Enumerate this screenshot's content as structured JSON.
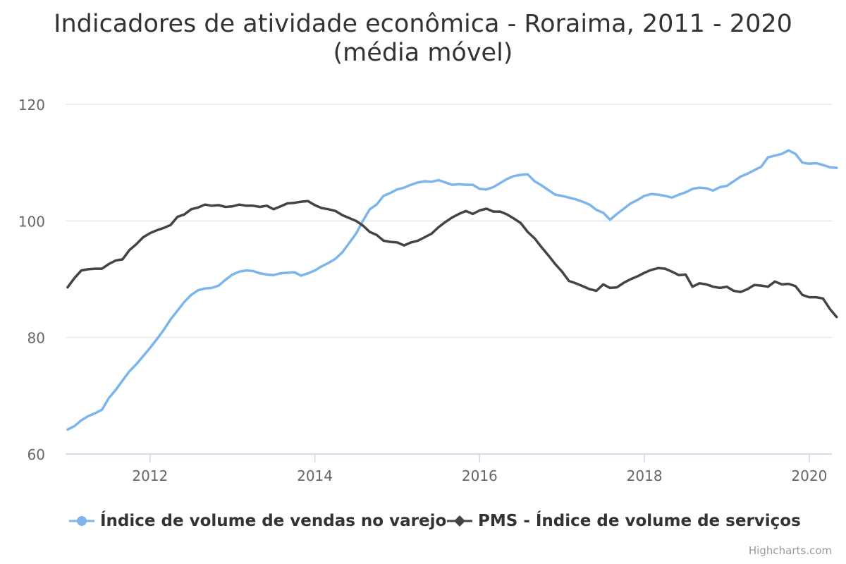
{
  "title_line1": "Indicadores de atividade econômica - Roraima, 2011 - 2020",
  "title_line2": "(média móvel)",
  "credits": "Highcharts.com",
  "chart_data": {
    "type": "line",
    "title": "Indicadores de atividade econômica - Roraima, 2011 - 2020",
    "subtitle": "(média móvel)",
    "xlabel": "",
    "ylabel": "",
    "xlim": [
      "2011-01",
      "2020-04"
    ],
    "ylim": [
      60,
      120
    ],
    "x_ticks": [
      2012,
      2014,
      2016,
      2018,
      2020
    ],
    "y_ticks": [
      60,
      80,
      100,
      120
    ],
    "grid": "horizontal",
    "legend_position": "bottom",
    "x_start": "2011-01",
    "x_step": "month",
    "series": [
      {
        "name": "Índice de volume de vendas no varejo",
        "color": "#7cb5ec",
        "marker": "circle",
        "values": [
          64.2,
          64.8,
          65.8,
          66.5,
          67.0,
          67.6,
          69.6,
          71.0,
          72.6,
          74.2,
          75.4,
          76.8,
          78.2,
          79.7,
          81.3,
          83.1,
          84.6,
          86.1,
          87.3,
          88.1,
          88.4,
          88.5,
          88.9,
          89.9,
          90.8,
          91.3,
          91.5,
          91.4,
          91.0,
          90.8,
          90.7,
          91.0,
          91.1,
          91.2,
          90.6,
          91.0,
          91.5,
          92.2,
          92.8,
          93.5,
          94.6,
          96.2,
          97.8,
          100.0,
          102.0,
          102.8,
          104.3,
          104.8,
          105.4,
          105.7,
          106.2,
          106.6,
          106.8,
          106.7,
          107.0,
          106.6,
          106.2,
          106.3,
          106.2,
          106.2,
          105.5,
          105.4,
          105.8,
          106.5,
          107.2,
          107.7,
          107.9,
          108.0,
          106.8,
          106.1,
          105.3,
          104.5,
          104.3,
          104.0,
          103.7,
          103.3,
          102.8,
          101.9,
          101.4,
          100.2,
          101.2,
          102.1,
          103.0,
          103.6,
          104.3,
          104.6,
          104.5,
          104.3,
          104.0,
          104.5,
          104.9,
          105.5,
          105.7,
          105.6,
          105.2,
          105.8,
          106.0,
          106.8,
          107.6,
          108.1,
          108.7,
          109.3,
          110.9,
          111.2,
          111.5,
          112.1,
          111.5,
          110.0,
          109.8,
          109.9,
          109.6,
          109.2,
          109.1
        ]
      },
      {
        "name": "PMS - Índice de volume de serviços",
        "color": "#434348",
        "marker": "diamond",
        "values": [
          88.6,
          90.2,
          91.5,
          91.7,
          91.8,
          91.8,
          92.6,
          93.2,
          93.4,
          95.0,
          96.0,
          97.2,
          97.9,
          98.4,
          98.8,
          99.3,
          100.7,
          101.1,
          102.0,
          102.3,
          102.8,
          102.6,
          102.7,
          102.4,
          102.5,
          102.8,
          102.6,
          102.6,
          102.4,
          102.6,
          102.0,
          102.5,
          103.0,
          103.1,
          103.3,
          103.4,
          102.7,
          102.2,
          102.0,
          101.7,
          101.0,
          100.5,
          100.0,
          99.2,
          98.1,
          97.6,
          96.6,
          96.4,
          96.3,
          95.8,
          96.3,
          96.6,
          97.2,
          97.8,
          98.9,
          99.8,
          100.6,
          101.2,
          101.7,
          101.2,
          101.8,
          102.1,
          101.6,
          101.6,
          101.1,
          100.4,
          99.6,
          98.1,
          97.0,
          95.5,
          94.1,
          92.6,
          91.3,
          89.7,
          89.3,
          88.8,
          88.3,
          88.0,
          89.1,
          88.5,
          88.6,
          89.4,
          90.0,
          90.5,
          91.1,
          91.6,
          91.9,
          91.8,
          91.3,
          90.7,
          90.8,
          88.7,
          89.3,
          89.1,
          88.7,
          88.5,
          88.7,
          88.0,
          87.8,
          88.3,
          89.0,
          88.9,
          88.7,
          89.6,
          89.1,
          89.2,
          88.8,
          87.3,
          86.9,
          86.9,
          86.7,
          84.9,
          83.5
        ]
      }
    ]
  }
}
